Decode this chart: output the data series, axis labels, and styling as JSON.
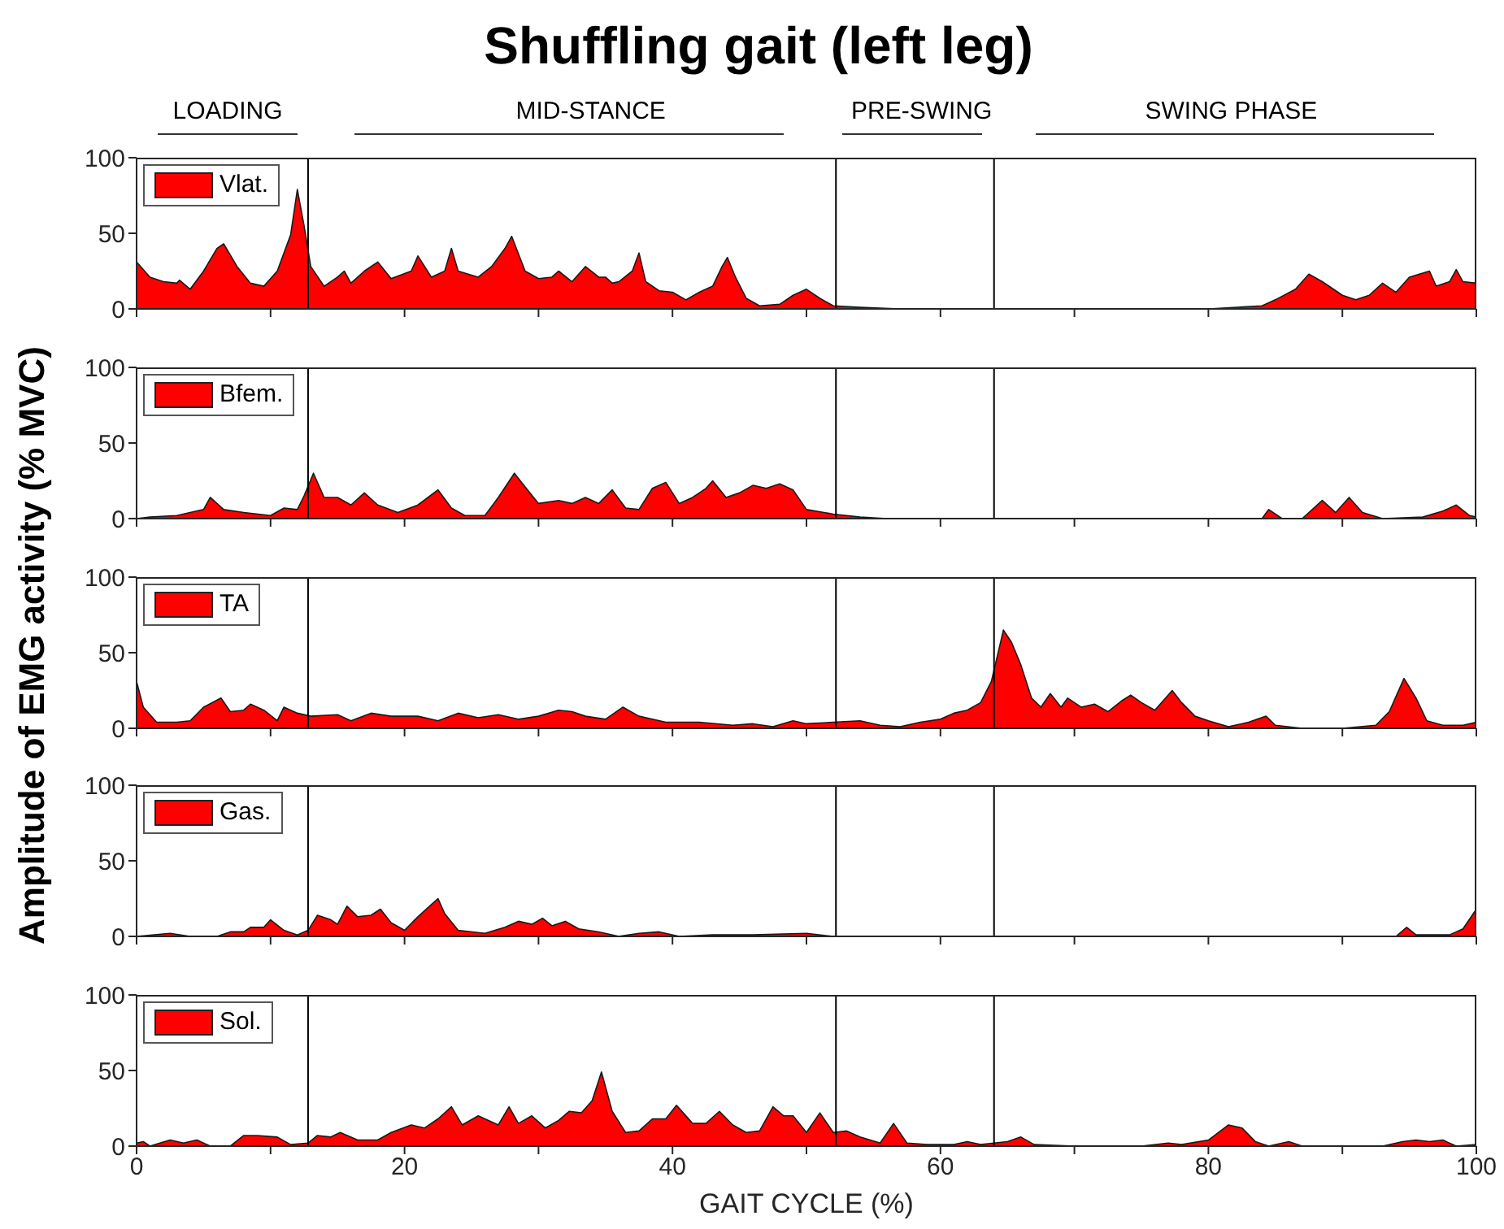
{
  "chart_data": [
    {
      "type": "area",
      "title": "Shuffling gait (left leg)",
      "ylabel": "Amplitude of EMG activity (% MVC)",
      "annotations": [
        "LOADING",
        "MID-STANCE",
        "PRE-SWING",
        "SWING PHASE"
      ],
      "x": [
        0,
        1,
        2,
        3,
        3.2,
        4,
        5,
        6,
        6.5,
        7.5,
        8.5,
        9.5,
        10.5,
        11.5,
        12,
        12.5,
        13,
        14,
        15,
        15.5,
        16,
        17,
        18,
        19,
        20.5,
        21,
        22,
        23,
        23.5,
        24,
        25.5,
        26.5,
        27.5,
        28,
        29,
        30,
        31,
        31.5,
        32.5,
        33.5,
        34.5,
        35,
        35.5,
        36,
        37,
        37.5,
        38,
        39,
        40,
        41,
        42,
        43,
        43.7,
        44.1,
        44.7,
        45.5,
        46.5,
        48,
        49,
        50,
        51,
        52,
        54,
        57,
        60,
        70,
        80,
        84,
        85,
        86.5,
        87.5,
        88.5,
        90,
        91,
        92,
        93,
        94,
        95,
        96.5,
        97,
        98,
        98.5,
        99,
        100
      ],
      "series": [
        {
          "name": "Vlat.",
          "color": "#ff0000",
          "values": [
            31,
            21,
            18,
            17,
            19,
            13,
            25,
            40,
            43,
            28,
            17,
            15,
            25,
            49,
            79,
            55,
            28,
            15,
            21,
            25,
            17,
            25,
            31,
            20,
            25,
            35,
            21,
            25,
            40,
            25,
            21,
            28,
            40,
            48,
            25,
            20,
            21,
            25,
            18,
            28,
            21,
            21,
            17,
            18,
            25,
            37,
            18,
            12,
            11,
            6,
            11,
            15,
            28,
            34,
            21,
            7,
            2,
            3,
            9,
            13,
            7,
            2,
            1,
            0,
            0,
            0,
            0,
            2,
            6,
            13,
            23,
            18,
            9,
            6,
            9,
            17,
            11,
            21,
            25,
            15,
            18,
            26,
            18,
            17
          ]
        }
      ],
      "xlim": [
        0,
        100
      ],
      "ylim": [
        0,
        100
      ],
      "yticks": [
        0,
        50,
        100
      ],
      "xticks": [
        0,
        {
          "value": 10,
          "label": null
        },
        20,
        {
          "value": 30,
          "label": null
        },
        40,
        {
          "value": 50,
          "label": null
        },
        60,
        {
          "value": 70,
          "label": null
        },
        80,
        {
          "value": 90,
          "label": null
        },
        100
      ],
      "ref_lines": [
        {
          "axis": "x",
          "value": 12.8
        },
        {
          "axis": "x",
          "value": 52.2
        },
        {
          "axis": "x",
          "value": 64
        }
      ],
      "legend": "top left",
      "tick_labels": "y"
    },
    {
      "type": "area",
      "x": [
        0,
        1,
        3,
        5,
        5.5,
        6.5,
        8,
        10,
        11,
        12,
        12.5,
        13.2,
        14,
        15,
        16,
        17,
        18,
        19.5,
        21,
        22.5,
        23.5,
        24.5,
        26,
        27,
        28.2,
        29,
        30,
        31.5,
        32.5,
        33.5,
        34.5,
        35.5,
        36.5,
        37.5,
        38.5,
        39.5,
        40.5,
        41.5,
        42.5,
        43,
        44,
        45,
        46,
        47,
        48,
        49,
        50,
        52,
        54,
        56,
        70,
        84,
        84.5,
        85.5,
        87,
        88.5,
        89.5,
        90.5,
        91.5,
        93,
        96,
        97.5,
        98.5,
        99.5,
        100
      ],
      "series": [
        {
          "name": "Bfem.",
          "color": "#ff0000",
          "values": [
            0,
            1,
            2,
            6,
            14,
            6,
            4,
            2,
            7,
            6,
            15,
            30,
            14,
            14,
            9,
            17,
            9,
            4,
            9,
            19,
            7,
            2,
            2,
            14,
            30,
            21,
            10,
            12,
            10,
            14,
            10,
            19,
            7,
            6,
            20,
            24,
            10,
            14,
            20,
            25,
            14,
            17,
            22,
            20,
            23,
            19,
            6,
            3,
            1,
            0,
            0,
            0,
            6,
            0,
            0,
            12,
            4,
            14,
            4,
            0,
            1,
            5,
            9,
            2,
            1
          ]
        }
      ],
      "xlim": [
        0,
        100
      ],
      "ylim": [
        0,
        100
      ],
      "yticks": [
        0,
        50,
        100
      ],
      "xticks": [
        0,
        {
          "value": 10,
          "label": null
        },
        20,
        {
          "value": 30,
          "label": null
        },
        40,
        {
          "value": 50,
          "label": null
        },
        60,
        {
          "value": 70,
          "label": null
        },
        80,
        {
          "value": 90,
          "label": null
        },
        100
      ],
      "ref_lines": [
        {
          "axis": "x",
          "value": 12.8
        },
        {
          "axis": "x",
          "value": 52.2
        },
        {
          "axis": "x",
          "value": 64
        }
      ],
      "legend": "top left",
      "tick_labels": "y"
    },
    {
      "type": "area",
      "x": [
        0,
        0.5,
        1.5,
        3,
        4,
        5,
        6.3,
        7,
        8,
        8.5,
        9.5,
        10.5,
        11,
        12,
        13,
        15,
        16,
        17.5,
        19,
        21,
        22.5,
        24,
        25.5,
        27,
        28.5,
        30,
        31.5,
        32.5,
        33.5,
        35,
        36.3,
        37.5,
        39.5,
        42,
        44.5,
        46,
        47.5,
        49,
        50,
        52,
        54,
        55.5,
        57,
        58.5,
        60,
        61,
        62,
        63,
        63.8,
        64.7,
        65.3,
        66,
        66.8,
        67.5,
        68.2,
        69,
        69.5,
        70.5,
        71.5,
        72.5,
        73.5,
        74.2,
        75,
        76,
        77.3,
        78,
        79,
        80,
        81.5,
        83,
        84.3,
        85,
        87,
        90,
        92.5,
        93.5,
        94.6,
        95.5,
        96.3,
        97.5,
        99,
        100
      ],
      "series": [
        {
          "name": "TA",
          "color": "#ff0000",
          "values": [
            31,
            14,
            4,
            4,
            5,
            14,
            20,
            11,
            12,
            16,
            12,
            5,
            14,
            10,
            8,
            9,
            5,
            10,
            8,
            8,
            5,
            10,
            7,
            9,
            6,
            8,
            12,
            11,
            8,
            6,
            14,
            8,
            4,
            4,
            2,
            3,
            1,
            5,
            3,
            4,
            5,
            2,
            1,
            4,
            6,
            10,
            12,
            17,
            31,
            65,
            57,
            42,
            20,
            14,
            23,
            14,
            20,
            14,
            16,
            11,
            18,
            22,
            17,
            12,
            25,
            17,
            8,
            5,
            1,
            4,
            8,
            2,
            0,
            0,
            2,
            11,
            33,
            20,
            5,
            2,
            2,
            4
          ]
        }
      ],
      "xlim": [
        0,
        100
      ],
      "ylim": [
        0,
        100
      ],
      "yticks": [
        0,
        50,
        100
      ],
      "xticks": [
        0,
        {
          "value": 10,
          "label": null
        },
        20,
        {
          "value": 30,
          "label": null
        },
        40,
        {
          "value": 50,
          "label": null
        },
        60,
        {
          "value": 70,
          "label": null
        },
        80,
        {
          "value": 90,
          "label": null
        },
        100
      ],
      "ref_lines": [
        {
          "axis": "x",
          "value": 12.8
        },
        {
          "axis": "x",
          "value": 52.2
        },
        {
          "axis": "x",
          "value": 64
        }
      ],
      "legend": "top left",
      "tick_labels": "y"
    },
    {
      "type": "area",
      "x": [
        0,
        2.5,
        4,
        6,
        7,
        8,
        8.5,
        9.5,
        10,
        11,
        12,
        12.8,
        13.5,
        14.5,
        15,
        15.7,
        16.5,
        17.5,
        18.2,
        19,
        20,
        21,
        22,
        22.5,
        23,
        24,
        26,
        27.5,
        28.5,
        29.5,
        30.3,
        31,
        32,
        33,
        34.5,
        36,
        37.5,
        39,
        40.5,
        43,
        46,
        50,
        52,
        90,
        94,
        94.8,
        95.5,
        98,
        99,
        100
      ],
      "series": [
        {
          "name": "Gas.",
          "color": "#ff0000",
          "values": [
            0,
            2,
            0,
            0,
            3,
            3,
            6,
            6,
            11,
            4,
            1,
            4,
            14,
            11,
            8,
            20,
            13,
            14,
            18,
            9,
            4,
            13,
            21,
            25,
            15,
            4,
            2,
            6,
            10,
            8,
            12,
            7,
            10,
            5,
            3,
            0,
            2,
            3,
            0,
            1,
            1,
            2,
            0,
            0,
            0,
            6,
            1,
            1,
            5,
            18
          ]
        }
      ],
      "xlim": [
        0,
        100
      ],
      "ylim": [
        0,
        100
      ],
      "yticks": [
        0,
        50,
        100
      ],
      "xticks": [
        0,
        {
          "value": 10,
          "label": null
        },
        20,
        {
          "value": 30,
          "label": null
        },
        40,
        {
          "value": 50,
          "label": null
        },
        60,
        {
          "value": 70,
          "label": null
        },
        80,
        {
          "value": 90,
          "label": null
        },
        100
      ],
      "ref_lines": [
        {
          "axis": "x",
          "value": 12.8
        },
        {
          "axis": "x",
          "value": 52.2
        },
        {
          "axis": "x",
          "value": 64
        }
      ],
      "legend": "top left",
      "tick_labels": "y"
    },
    {
      "type": "area",
      "xlabel": "GAIT CYCLE (%)",
      "x": [
        0,
        0.5,
        1,
        2.5,
        3.5,
        4.5,
        5.5,
        7,
        8,
        9,
        10.5,
        11.5,
        12.8,
        13.5,
        14.5,
        15.2,
        16.5,
        18,
        19,
        20.5,
        21.5,
        22.5,
        23.5,
        24.3,
        25.5,
        27,
        27.8,
        28.5,
        29.5,
        30.5,
        31.5,
        32.3,
        33.2,
        34,
        34.7,
        35.5,
        36.5,
        37.5,
        38.5,
        39.5,
        40.3,
        41.5,
        42.5,
        43.5,
        44.5,
        45.5,
        46.5,
        47.5,
        48.3,
        49,
        50,
        51,
        52,
        53,
        54,
        55.5,
        56.5,
        57.5,
        59,
        61,
        62,
        63,
        64,
        65,
        66,
        67,
        70,
        75,
        77,
        78,
        80,
        81.5,
        82.5,
        83.5,
        84.5,
        86,
        87,
        93,
        94.5,
        95.5,
        96.5,
        97.5,
        98.5,
        100
      ],
      "series": [
        {
          "name": "Sol.",
          "color": "#ff0000",
          "values": [
            2,
            3,
            0,
            4,
            2,
            4,
            0,
            0,
            7,
            7,
            6,
            1,
            2,
            7,
            6,
            9,
            4,
            4,
            9,
            14,
            12,
            18,
            26,
            14,
            20,
            14,
            26,
            15,
            20,
            12,
            17,
            23,
            22,
            30,
            49,
            23,
            9,
            10,
            18,
            18,
            27,
            15,
            15,
            23,
            14,
            9,
            10,
            26,
            20,
            20,
            9,
            22,
            9,
            10,
            6,
            2,
            15,
            2,
            1,
            1,
            3,
            1,
            2,
            3,
            6,
            1,
            0,
            0,
            2,
            1,
            4,
            14,
            12,
            3,
            0,
            3,
            0,
            0,
            3,
            4,
            3,
            4,
            0,
            1
          ]
        }
      ],
      "xlim": [
        0,
        100
      ],
      "ylim": [
        0,
        100
      ],
      "yticks": [
        0,
        50,
        100
      ],
      "xticks": [
        0,
        {
          "value": 10,
          "label": null
        },
        20,
        {
          "value": 30,
          "label": null
        },
        40,
        {
          "value": 50,
          "label": null
        },
        60,
        {
          "value": 70,
          "label": null
        },
        80,
        {
          "value": 90,
          "label": null
        },
        100
      ],
      "ref_lines": [
        {
          "axis": "x",
          "value": 12.8
        },
        {
          "axis": "x",
          "value": 52.2
        },
        {
          "axis": "x",
          "value": 64
        }
      ],
      "legend": "top left"
    }
  ]
}
